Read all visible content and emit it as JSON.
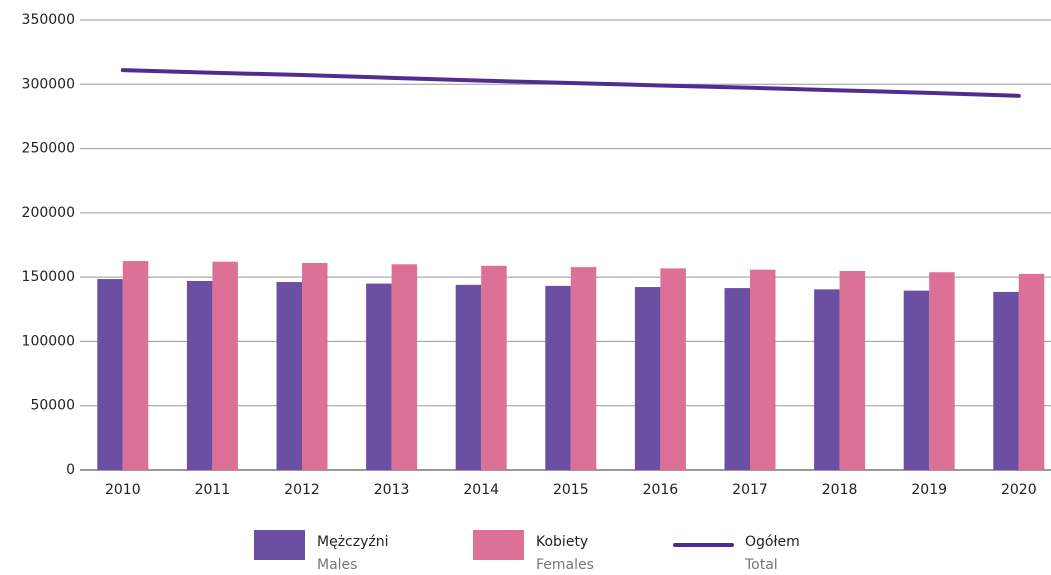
{
  "chart_data": {
    "type": "bar",
    "categories": [
      "2010",
      "2011",
      "2012",
      "2013",
      "2014",
      "2015",
      "2016",
      "2017",
      "2018",
      "2019",
      "2020"
    ],
    "series": [
      {
        "name": "Mężczyźni",
        "subtitle": "Males",
        "type": "bar",
        "color": "#6a4fa3",
        "values": [
          148500,
          147000,
          146200,
          145000,
          144000,
          143200,
          142300,
          141500,
          140500,
          139500,
          138500
        ]
      },
      {
        "name": "Kobiety",
        "subtitle": "Females",
        "type": "bar",
        "color": "#dd7096",
        "values": [
          162500,
          162000,
          161000,
          160000,
          158800,
          157800,
          156800,
          155800,
          154800,
          153800,
          152500
        ]
      },
      {
        "name": "Ogółem",
        "subtitle": "Total",
        "type": "line",
        "color": "#4f2d8f",
        "values": [
          311000,
          309000,
          307200,
          305000,
          302800,
          301000,
          299100,
          297300,
          295300,
          293300,
          291000
        ]
      }
    ],
    "ylim": [
      0,
      350000
    ],
    "yticks": [
      0,
      50000,
      100000,
      150000,
      200000,
      250000,
      300000,
      350000
    ],
    "grid": true,
    "legend": "bottom"
  }
}
